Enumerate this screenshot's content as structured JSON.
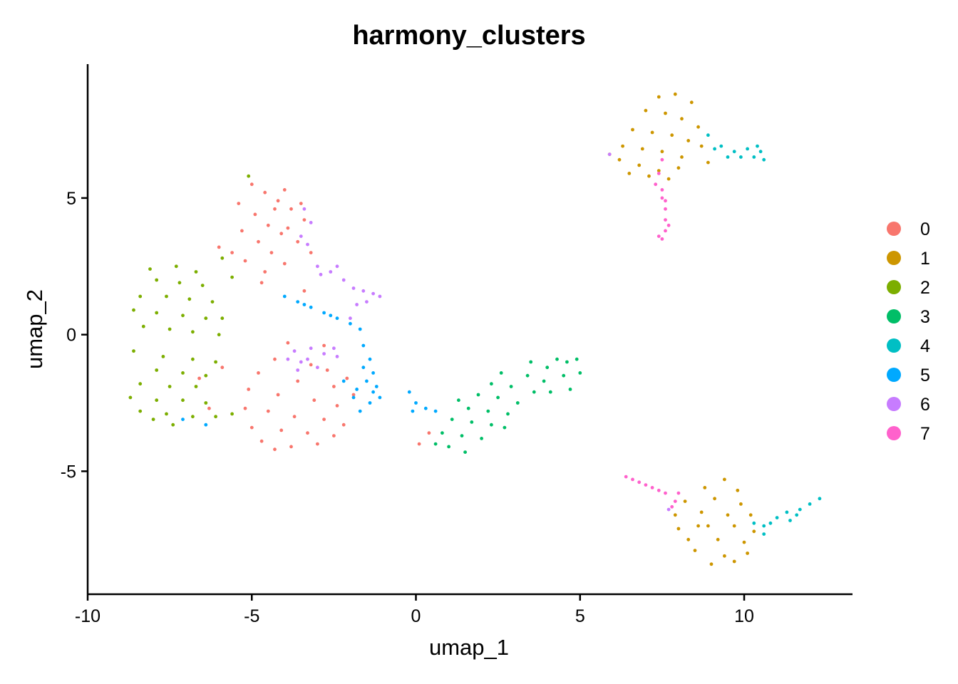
{
  "chart_data": {
    "type": "scatter",
    "title": "harmony_clusters",
    "xlabel": "umap_1",
    "ylabel": "umap_2",
    "xlim": [
      -10,
      13.3
    ],
    "ylim": [
      -9.5,
      9.9
    ],
    "x_ticks": [
      -10,
      -5,
      0,
      5,
      10
    ],
    "x_tick_labels": [
      "-10",
      "-5",
      "0",
      "5",
      "10"
    ],
    "y_ticks": [
      -5,
      0,
      5
    ],
    "y_tick_labels": [
      "-5",
      "0",
      "5"
    ],
    "grid": false,
    "legend_position": "right",
    "colors": [
      "#F8766D",
      "#CD9600",
      "#7CAE00",
      "#00BE67",
      "#00BFC4",
      "#00A9FF",
      "#C77CFF",
      "#FF61CC"
    ],
    "series": [
      {
        "name": "0",
        "points": [
          [
            -5.0,
            5.5
          ],
          [
            -4.6,
            5.2
          ],
          [
            -4.2,
            4.9
          ],
          [
            -3.8,
            4.6
          ],
          [
            -3.4,
            4.2
          ],
          [
            -4.9,
            4.4
          ],
          [
            -4.5,
            4.0
          ],
          [
            -4.1,
            3.7
          ],
          [
            -3.6,
            3.4
          ],
          [
            -3.2,
            3.0
          ],
          [
            -5.3,
            3.8
          ],
          [
            -4.8,
            3.4
          ],
          [
            -4.4,
            3.0
          ],
          [
            -4.0,
            2.6
          ],
          [
            -5.6,
            3.0
          ],
          [
            -5.2,
            2.7
          ],
          [
            -4.6,
            2.3
          ],
          [
            -3.9,
            3.9
          ],
          [
            -4.3,
            4.6
          ],
          [
            -5.4,
            4.8
          ],
          [
            -3.5,
            4.8
          ],
          [
            -4.0,
            5.3
          ],
          [
            -4.7,
            1.9
          ],
          [
            -6.0,
            3.2
          ],
          [
            -3.9,
            -0.3
          ],
          [
            -4.3,
            -0.9
          ],
          [
            -3.2,
            -1.1
          ],
          [
            -2.7,
            -1.3
          ],
          [
            -4.8,
            -1.4
          ],
          [
            -3.6,
            -1.7
          ],
          [
            -2.5,
            -1.9
          ],
          [
            -5.1,
            -2.0
          ],
          [
            -4.2,
            -2.2
          ],
          [
            -3.1,
            -2.4
          ],
          [
            -2.4,
            -2.6
          ],
          [
            -5.2,
            -2.7
          ],
          [
            -4.5,
            -2.8
          ],
          [
            -3.7,
            -3.0
          ],
          [
            -2.8,
            -3.1
          ],
          [
            -2.2,
            -3.3
          ],
          [
            -5.0,
            -3.4
          ],
          [
            -4.1,
            -3.5
          ],
          [
            -3.3,
            -3.6
          ],
          [
            -2.5,
            -3.7
          ],
          [
            -4.7,
            -3.9
          ],
          [
            -3.8,
            -4.1
          ],
          [
            -3.0,
            -4.0
          ],
          [
            -4.3,
            -4.2
          ],
          [
            -5.9,
            -1.2
          ],
          [
            -6.3,
            -2.7
          ],
          [
            -2.1,
            -1.6
          ],
          [
            -2.8,
            -0.4
          ],
          [
            0.4,
            -3.6
          ],
          [
            0.1,
            -4.0
          ],
          [
            -3.4,
            1.6
          ],
          [
            -1.9,
            -2.2
          ],
          [
            -6.6,
            -1.6
          ]
        ]
      },
      {
        "name": "1",
        "points": [
          [
            7.4,
            8.7
          ],
          [
            7.9,
            8.8
          ],
          [
            8.4,
            8.5
          ],
          [
            7.0,
            8.2
          ],
          [
            7.6,
            8.1
          ],
          [
            8.1,
            7.9
          ],
          [
            8.6,
            7.6
          ],
          [
            6.6,
            7.5
          ],
          [
            7.2,
            7.4
          ],
          [
            7.8,
            7.3
          ],
          [
            8.3,
            7.1
          ],
          [
            6.3,
            6.9
          ],
          [
            6.9,
            6.8
          ],
          [
            7.5,
            6.7
          ],
          [
            8.1,
            6.5
          ],
          [
            8.7,
            6.9
          ],
          [
            6.2,
            6.4
          ],
          [
            6.8,
            6.2
          ],
          [
            7.4,
            6.0
          ],
          [
            8.0,
            6.1
          ],
          [
            7.1,
            5.8
          ],
          [
            7.7,
            5.7
          ],
          [
            6.5,
            5.9
          ],
          [
            5.9,
            6.6
          ],
          [
            8.9,
            6.3
          ],
          [
            9.4,
            -5.3
          ],
          [
            8.8,
            -5.6
          ],
          [
            9.8,
            -5.7
          ],
          [
            8.2,
            -6.1
          ],
          [
            9.1,
            -6.0
          ],
          [
            9.9,
            -6.2
          ],
          [
            10.2,
            -6.6
          ],
          [
            7.9,
            -6.6
          ],
          [
            8.7,
            -6.5
          ],
          [
            9.5,
            -6.6
          ],
          [
            8.0,
            -7.1
          ],
          [
            8.9,
            -7.0
          ],
          [
            9.7,
            -7.0
          ],
          [
            10.3,
            -7.2
          ],
          [
            8.3,
            -7.5
          ],
          [
            9.2,
            -7.5
          ],
          [
            10.0,
            -7.6
          ],
          [
            8.5,
            -7.9
          ],
          [
            9.4,
            -8.1
          ],
          [
            10.1,
            -8.0
          ],
          [
            9.0,
            -8.4
          ],
          [
            9.7,
            -8.3
          ],
          [
            8.6,
            -7.0
          ]
        ]
      },
      {
        "name": "2",
        "points": [
          [
            -7.3,
            2.5
          ],
          [
            -6.7,
            2.3
          ],
          [
            -7.9,
            2.0
          ],
          [
            -7.2,
            1.9
          ],
          [
            -6.5,
            1.8
          ],
          [
            -8.4,
            1.4
          ],
          [
            -7.6,
            1.4
          ],
          [
            -6.9,
            1.3
          ],
          [
            -6.2,
            1.2
          ],
          [
            -8.6,
            0.9
          ],
          [
            -7.9,
            0.8
          ],
          [
            -7.1,
            0.7
          ],
          [
            -6.4,
            0.6
          ],
          [
            -8.3,
            0.3
          ],
          [
            -7.5,
            0.2
          ],
          [
            -6.8,
            0.1
          ],
          [
            -6.0,
            0.0
          ],
          [
            -8.6,
            -0.6
          ],
          [
            -7.7,
            -0.8
          ],
          [
            -6.8,
            -0.9
          ],
          [
            -6.1,
            -1.0
          ],
          [
            -7.9,
            -1.3
          ],
          [
            -7.1,
            -1.4
          ],
          [
            -6.4,
            -1.5
          ],
          [
            -8.4,
            -1.8
          ],
          [
            -7.5,
            -1.9
          ],
          [
            -6.7,
            -1.9
          ],
          [
            -8.7,
            -2.3
          ],
          [
            -7.9,
            -2.4
          ],
          [
            -7.1,
            -2.4
          ],
          [
            -6.4,
            -2.5
          ],
          [
            -8.4,
            -2.8
          ],
          [
            -7.6,
            -2.9
          ],
          [
            -6.8,
            -3.0
          ],
          [
            -8.0,
            -3.1
          ],
          [
            -7.4,
            -3.3
          ],
          [
            -6.1,
            -3.0
          ],
          [
            -5.9,
            2.8
          ],
          [
            -5.6,
            2.1
          ],
          [
            -5.9,
            0.6
          ],
          [
            -5.6,
            -2.9
          ],
          [
            -5.1,
            5.8
          ],
          [
            -8.1,
            2.4
          ]
        ]
      },
      {
        "name": "3",
        "points": [
          [
            1.0,
            -4.1
          ],
          [
            1.5,
            -4.3
          ],
          [
            0.8,
            -3.6
          ],
          [
            1.4,
            -3.7
          ],
          [
            2.0,
            -3.8
          ],
          [
            1.1,
            -3.1
          ],
          [
            1.7,
            -3.2
          ],
          [
            2.3,
            -3.3
          ],
          [
            1.6,
            -2.7
          ],
          [
            2.2,
            -2.8
          ],
          [
            2.8,
            -2.9
          ],
          [
            1.9,
            -2.2
          ],
          [
            2.5,
            -2.3
          ],
          [
            3.1,
            -2.5
          ],
          [
            2.3,
            -1.8
          ],
          [
            2.9,
            -1.9
          ],
          [
            2.6,
            -1.4
          ],
          [
            3.4,
            -1.5
          ],
          [
            3.6,
            -2.1
          ],
          [
            4.0,
            -1.2
          ],
          [
            4.6,
            -1.0
          ],
          [
            3.9,
            -1.7
          ],
          [
            4.5,
            -1.5
          ],
          [
            5.0,
            -1.4
          ],
          [
            4.1,
            -2.1
          ],
          [
            4.7,
            -2.0
          ],
          [
            3.5,
            -1.0
          ],
          [
            4.3,
            -0.9
          ],
          [
            4.9,
            -0.9
          ],
          [
            0.6,
            -4.0
          ],
          [
            2.7,
            -3.4
          ],
          [
            1.3,
            -2.4
          ]
        ]
      },
      {
        "name": "4",
        "points": [
          [
            8.9,
            7.3
          ],
          [
            9.3,
            6.9
          ],
          [
            9.7,
            6.7
          ],
          [
            10.1,
            6.8
          ],
          [
            10.5,
            6.7
          ],
          [
            10.3,
            6.5
          ],
          [
            9.9,
            6.5
          ],
          [
            9.5,
            6.5
          ],
          [
            10.6,
            6.4
          ],
          [
            9.1,
            6.8
          ],
          [
            10.4,
            6.9
          ],
          [
            10.6,
            -7.0
          ],
          [
            11.0,
            -6.7
          ],
          [
            11.4,
            -6.8
          ],
          [
            11.7,
            -6.4
          ],
          [
            12.0,
            -6.2
          ],
          [
            12.3,
            -6.0
          ],
          [
            11.3,
            -6.5
          ],
          [
            10.8,
            -6.9
          ],
          [
            10.6,
            -7.3
          ],
          [
            11.6,
            -6.6
          ],
          [
            10.3,
            -6.9
          ]
        ]
      },
      {
        "name": "5",
        "points": [
          [
            -4.0,
            1.4
          ],
          [
            -3.6,
            1.2
          ],
          [
            -3.2,
            1.0
          ],
          [
            -2.8,
            0.8
          ],
          [
            -2.4,
            0.6
          ],
          [
            -2.0,
            0.4
          ],
          [
            -1.7,
            0.2
          ],
          [
            -1.6,
            -0.4
          ],
          [
            -1.4,
            -0.9
          ],
          [
            -1.3,
            -1.4
          ],
          [
            -1.2,
            -1.9
          ],
          [
            -1.1,
            -2.3
          ],
          [
            -1.4,
            -2.5
          ],
          [
            -1.8,
            -2.0
          ],
          [
            -1.9,
            -2.3
          ],
          [
            -2.2,
            -1.7
          ],
          [
            -1.5,
            -1.7
          ],
          [
            -1.3,
            -2.1
          ],
          [
            -1.6,
            -1.2
          ],
          [
            -3.4,
            1.1
          ],
          [
            -2.6,
            0.7
          ],
          [
            -0.2,
            -2.1
          ],
          [
            0.0,
            -2.5
          ],
          [
            -1.7,
            -2.8
          ],
          [
            0.3,
            -2.7
          ],
          [
            -7.1,
            -3.1
          ],
          [
            -6.4,
            -3.3
          ],
          [
            0.6,
            -2.8
          ],
          [
            -0.1,
            -2.8
          ]
        ]
      },
      {
        "name": "6",
        "points": [
          [
            -3.4,
            4.6
          ],
          [
            -3.2,
            4.1
          ],
          [
            -3.5,
            3.6
          ],
          [
            -3.3,
            3.3
          ],
          [
            -3.0,
            2.5
          ],
          [
            -2.6,
            2.3
          ],
          [
            -2.2,
            2.0
          ],
          [
            -1.9,
            1.7
          ],
          [
            -1.6,
            1.6
          ],
          [
            -1.3,
            1.5
          ],
          [
            -1.1,
            1.4
          ],
          [
            -1.8,
            1.1
          ],
          [
            -2.0,
            0.6
          ],
          [
            -1.5,
            1.2
          ],
          [
            -2.4,
            2.5
          ],
          [
            -2.9,
            2.2
          ],
          [
            -3.7,
            -0.6
          ],
          [
            -3.3,
            -0.9
          ],
          [
            -3.0,
            -1.2
          ],
          [
            -3.6,
            -1.3
          ],
          [
            -2.8,
            -0.7
          ],
          [
            -2.5,
            -0.5
          ],
          [
            -3.9,
            -0.9
          ],
          [
            -3.2,
            -0.5
          ],
          [
            -3.5,
            -1.0
          ],
          [
            -2.4,
            -0.8
          ],
          [
            5.9,
            6.6
          ],
          [
            7.7,
            -6.4
          ]
        ]
      },
      {
        "name": "7",
        "points": [
          [
            7.5,
            6.4
          ],
          [
            7.4,
            5.9
          ],
          [
            7.3,
            5.5
          ],
          [
            7.5,
            5.0
          ],
          [
            7.6,
            4.6
          ],
          [
            7.6,
            4.2
          ],
          [
            7.6,
            3.8
          ],
          [
            7.5,
            3.5
          ],
          [
            7.7,
            4.0
          ],
          [
            7.4,
            3.6
          ],
          [
            7.6,
            4.9
          ],
          [
            7.5,
            5.3
          ],
          [
            6.4,
            -5.2
          ],
          [
            6.8,
            -5.4
          ],
          [
            7.0,
            -5.5
          ],
          [
            7.2,
            -5.6
          ],
          [
            7.4,
            -5.7
          ],
          [
            7.6,
            -5.8
          ],
          [
            8.0,
            -5.8
          ],
          [
            7.8,
            -6.3
          ],
          [
            7.9,
            -6.1
          ],
          [
            6.6,
            -5.3
          ]
        ]
      }
    ]
  }
}
